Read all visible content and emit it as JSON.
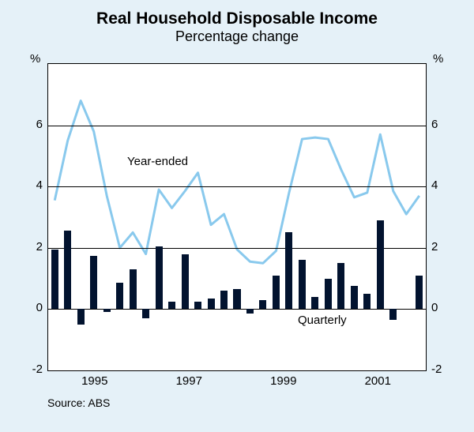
{
  "title": "Real Household Disposable Income",
  "title_fontsize": 21,
  "subtitle": "Percentage change",
  "subtitle_fontsize": 18,
  "source": "Source: ABS",
  "y_unit": "%",
  "ylim": [
    -2,
    8
  ],
  "ytick_values": [
    -2,
    0,
    2,
    4,
    6
  ],
  "ytick_labels": [
    "-2",
    "0",
    "2",
    "4",
    "6"
  ],
  "x_year_labels": [
    "1995",
    "1997",
    "1999",
    "2001"
  ],
  "x_year_positions": [
    3,
    5,
    7,
    9
  ],
  "background_color": "#e5f1f8",
  "plot_background": "#ffffff",
  "grid_color": "#000000",
  "bars": {
    "type": "bar",
    "label": "Quarterly",
    "color": "#02132f",
    "bar_width_ratio": 0.55,
    "values": [
      1.95,
      2.55,
      -0.5,
      1.75,
      -0.1,
      0.85,
      1.3,
      -0.3,
      2.05,
      0.25,
      1.8,
      0.25,
      0.35,
      0.6,
      0.65,
      -0.15,
      0.3,
      1.1,
      2.5,
      1.6,
      0.4,
      1.0,
      1.5,
      0.75,
      0.5,
      2.9,
      -0.35,
      0.0,
      1.1
    ]
  },
  "line": {
    "type": "line",
    "label": "Year-ended",
    "color": "#89c9ed",
    "stroke_width": 3,
    "values": [
      3.55,
      5.5,
      6.8,
      5.8,
      3.7,
      2.0,
      2.5,
      1.8,
      3.9,
      3.3,
      3.85,
      4.45,
      2.75,
      3.1,
      1.95,
      1.55,
      1.5,
      1.9,
      3.8,
      5.55,
      5.6,
      5.55,
      4.55,
      3.65,
      3.8,
      5.7,
      3.85,
      3.1,
      3.7
    ]
  },
  "label_fontsize": 15,
  "source_fontsize": 14
}
